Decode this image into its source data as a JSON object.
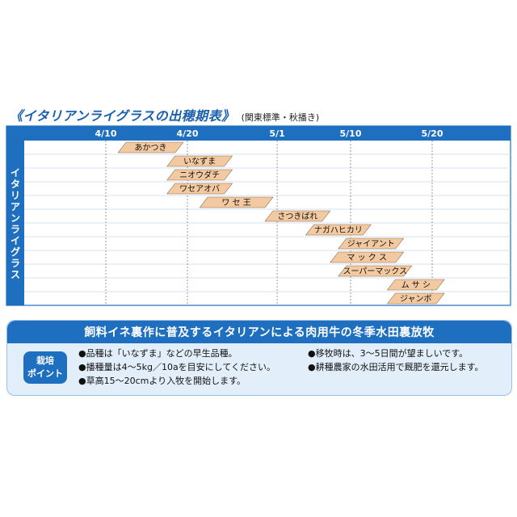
{
  "title": "《イタリアンライグラスの出穂期表》",
  "subtitle": "(関東標準・秋播き)",
  "chart_data": {
    "type": "gantt",
    "ylabel": "イタリアンライグラス",
    "ticks": [
      "4/10",
      "4/20",
      "5/1",
      "5/10",
      "5/20"
    ],
    "tick_dates": [
      "04-10",
      "04-20",
      "05-01",
      "05-10",
      "05-20"
    ],
    "range": [
      "04-01",
      "05-30"
    ],
    "grid": true,
    "varieties": [
      {
        "name": "あかつき",
        "start": "04-12",
        "end": "04-19"
      },
      {
        "name": "いなずま",
        "start": "04-18",
        "end": "04-25"
      },
      {
        "name": "ニオウダチ",
        "start": "04-18",
        "end": "04-25"
      },
      {
        "name": "ワセアオバ",
        "start": "04-18",
        "end": "04-25"
      },
      {
        "name": "ワ セ 王",
        "start": "04-22",
        "end": "04-30"
      },
      {
        "name": "さつきばれ",
        "start": "04-30",
        "end": "05-07"
      },
      {
        "name": "ナガハヒカリ",
        "start": "05-05",
        "end": "05-12"
      },
      {
        "name": "ジャイアント",
        "start": "05-09",
        "end": "05-16"
      },
      {
        "name": "マ ッ ク ス",
        "start": "05-08",
        "end": "05-16"
      },
      {
        "name": "スーパーマックス",
        "start": "05-09",
        "end": "05-17"
      },
      {
        "name": "ム サ シ",
        "start": "05-15",
        "end": "05-21"
      },
      {
        "name": "ジャンボ",
        "start": "05-15",
        "end": "05-21"
      }
    ]
  },
  "colors": {
    "bar": "#f2c9a0",
    "bar_stroke": "#8a6a4a",
    "blue": "#1f6fc0",
    "panel": "#e2eef9",
    "grid": "#9a9a9a"
  },
  "info": {
    "heading": "飼料イネ裏作に普及するイタリアンによる肉用牛の冬季水田裏放牧",
    "badge_line1": "栽培",
    "badge_line2": "ポイント",
    "notes_left": [
      "●品種は「いなずま」などの早生品種。",
      "●播種量は4～5kg／10aを目安にしてください。",
      "●草高15～20cmより入牧を開始します。"
    ],
    "notes_right": [
      "●移牧時は、3～5日間が望ましいです。",
      "●耕種農家の水田活用で厩肥を還元します。"
    ]
  }
}
